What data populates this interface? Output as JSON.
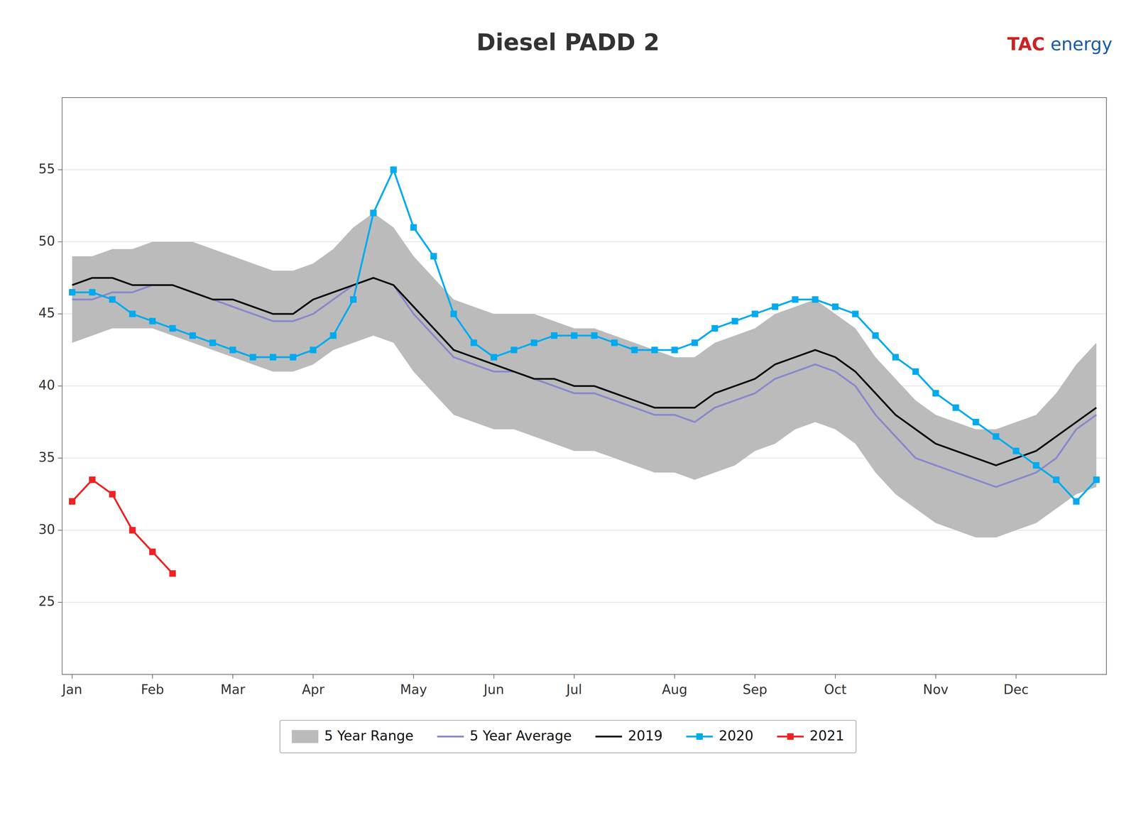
{
  "chart_data": {
    "type": "line",
    "title": "Diesel  PADD 2",
    "annotations": [
      {
        "text": "TAC",
        "color": "#cc2222"
      },
      {
        "text": "energy",
        "color": "#1a5ca8"
      }
    ],
    "x": [
      1,
      2,
      3,
      4,
      5,
      6,
      7,
      8,
      9,
      10,
      11,
      12,
      13,
      14,
      15,
      16,
      17,
      18,
      19,
      20,
      21,
      22,
      23,
      24,
      25,
      26,
      27,
      28,
      29,
      30,
      31,
      32,
      33,
      34,
      35,
      36,
      37,
      38,
      39,
      40,
      41,
      42,
      43,
      44,
      45,
      46,
      47,
      48,
      49,
      50,
      51,
      52
    ],
    "xlim": [
      0.5,
      52.5
    ],
    "xticks": [
      {
        "value": 1,
        "label": "Jan"
      },
      {
        "value": 5,
        "label": "Feb"
      },
      {
        "value": 9,
        "label": "Mar"
      },
      {
        "value": 13,
        "label": "Apr"
      },
      {
        "value": 18,
        "label": "May"
      },
      {
        "value": 22,
        "label": "Jun"
      },
      {
        "value": 26,
        "label": "Jul"
      },
      {
        "value": 31,
        "label": "Aug"
      },
      {
        "value": 35,
        "label": "Sep"
      },
      {
        "value": 39,
        "label": "Oct"
      },
      {
        "value": 44,
        "label": "Nov"
      },
      {
        "value": 48,
        "label": "Dec"
      }
    ],
    "ylim": [
      20,
      60
    ],
    "yticks": [
      25,
      30,
      35,
      40,
      45,
      50,
      55
    ],
    "grid": true,
    "legend": "bottom",
    "series": [
      {
        "name": "5 Year Range",
        "type": "range",
        "color": "#bbbbbb",
        "upper": [
          49,
          49,
          49.5,
          49.5,
          50,
          50,
          50,
          49.5,
          49,
          48.5,
          48,
          48,
          48.5,
          49.5,
          51,
          52,
          51,
          49,
          47.5,
          46,
          45.5,
          45,
          45,
          45,
          44.5,
          44,
          44,
          43.5,
          43,
          42.5,
          42,
          42,
          43,
          43.5,
          44,
          45,
          45.5,
          46,
          45,
          44,
          42,
          40.5,
          39,
          38,
          37.5,
          37,
          37,
          37.5,
          38,
          39.5,
          41.5,
          43
        ],
        "lower": [
          43,
          43.5,
          44,
          44,
          44,
          43.5,
          43,
          42.5,
          42,
          41.5,
          41,
          41,
          41.5,
          42.5,
          43,
          43.5,
          43,
          41,
          39.5,
          38,
          37.5,
          37,
          37,
          36.5,
          36,
          35.5,
          35.5,
          35,
          34.5,
          34,
          34,
          33.5,
          34,
          34.5,
          35.5,
          36,
          37,
          37.5,
          37,
          36,
          34,
          32.5,
          31.5,
          30.5,
          30,
          29.5,
          29.5,
          30,
          30.5,
          31.5,
          32.5,
          33
        ]
      },
      {
        "name": "5 Year Average",
        "type": "line",
        "color": "#8888cc",
        "line_style": "solid",
        "values": [
          46,
          46,
          46.5,
          46.5,
          47,
          47,
          46.5,
          46,
          45.5,
          45,
          44.5,
          44.5,
          45,
          46,
          47,
          47.5,
          47,
          45,
          43.5,
          42,
          41.5,
          41,
          41,
          40.5,
          40,
          39.5,
          39.5,
          39,
          38.5,
          38,
          38,
          37.5,
          38.5,
          39,
          39.5,
          40.5,
          41,
          41.5,
          41,
          40,
          38,
          36.5,
          35,
          34.5,
          34,
          33.5,
          33,
          33.5,
          34,
          35,
          37,
          38
        ]
      },
      {
        "name": "2019",
        "type": "line",
        "color": "#111111",
        "line_style": "solid",
        "values": [
          47,
          47.5,
          47.5,
          47,
          47,
          47,
          46.5,
          46,
          46,
          45.5,
          45,
          45,
          46,
          46.5,
          47,
          47.5,
          47,
          45.5,
          44,
          42.5,
          42,
          41.5,
          41,
          40.5,
          40.5,
          40,
          40,
          39.5,
          39,
          38.5,
          38.5,
          38.5,
          39.5,
          40,
          40.5,
          41.5,
          42,
          42.5,
          42,
          41,
          39.5,
          38,
          37,
          36,
          35.5,
          35,
          34.5,
          35,
          35.5,
          36.5,
          37.5,
          38.5
        ]
      },
      {
        "name": "2020",
        "type": "line",
        "color": "#00aaee",
        "line_style": "solid",
        "marker": "square",
        "values": [
          46.5,
          46.5,
          46,
          45,
          44.5,
          44,
          43.5,
          43,
          42.5,
          42,
          42,
          42,
          42.5,
          43.5,
          46,
          52,
          55,
          51,
          49,
          45,
          43,
          42,
          42.5,
          43,
          43.5,
          43.5,
          43.5,
          43,
          42.5,
          42.5,
          42.5,
          43,
          44,
          44.5,
          45,
          45.5,
          46,
          46,
          45.5,
          45,
          43.5,
          42,
          41,
          39.5,
          38.5,
          37.5,
          36.5,
          35.5,
          34.5,
          33.5,
          32,
          33.5
        ]
      },
      {
        "name": "2021",
        "type": "line",
        "color": "#ee2222",
        "line_style": "solid",
        "marker": "square",
        "x": [
          1,
          2,
          3,
          4,
          5,
          6
        ],
        "values": [
          32,
          33.5,
          32.5,
          30,
          28.5,
          27
        ]
      }
    ]
  }
}
